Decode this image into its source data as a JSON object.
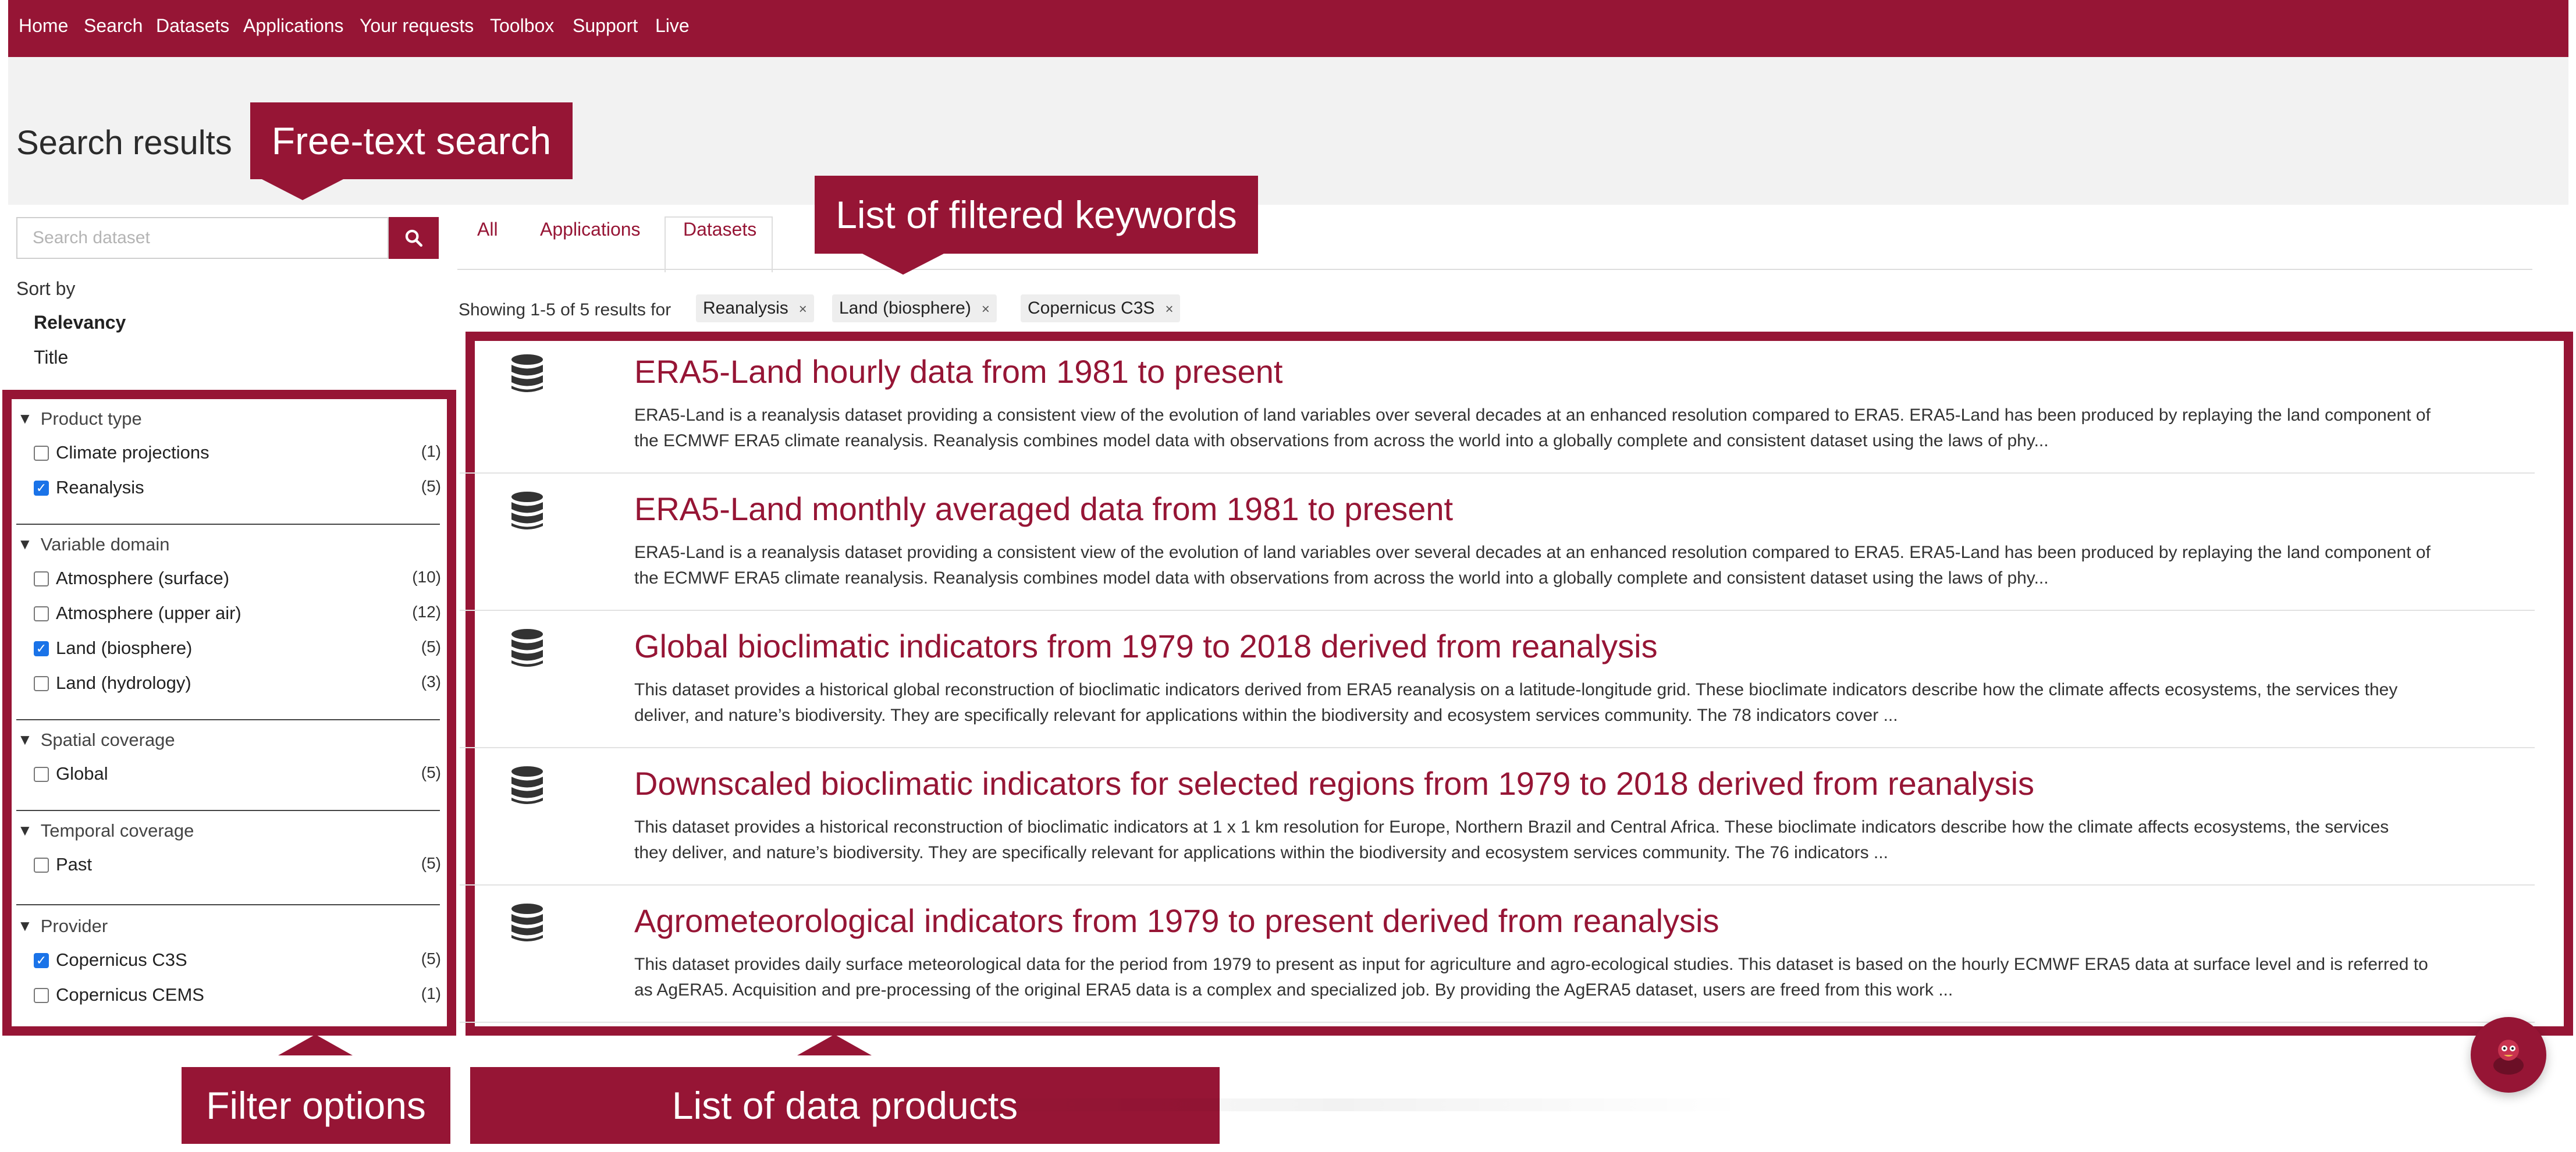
{
  "nav": {
    "items": [
      "Home",
      "Search",
      "Datasets",
      "Applications",
      "Your requests",
      "Toolbox",
      "Support",
      "Live"
    ]
  },
  "page": {
    "title": "Search results"
  },
  "search": {
    "placeholder": "Search dataset",
    "value": ""
  },
  "sort": {
    "label": "Sort by",
    "options": [
      "Relevancy",
      "Title"
    ],
    "selected": "Relevancy"
  },
  "filters": {
    "groups": [
      {
        "title": "Product type",
        "items": [
          {
            "label": "Climate projections",
            "count": "(1)",
            "checked": false
          },
          {
            "label": "Reanalysis",
            "count": "(5)",
            "checked": true
          }
        ]
      },
      {
        "title": "Variable domain",
        "items": [
          {
            "label": "Atmosphere (surface)",
            "count": "(10)",
            "checked": false
          },
          {
            "label": "Atmosphere (upper air)",
            "count": "(12)",
            "checked": false
          },
          {
            "label": "Land (biosphere)",
            "count": "(5)",
            "checked": true
          },
          {
            "label": "Land (hydrology)",
            "count": "(3)",
            "checked": false
          }
        ]
      },
      {
        "title": "Spatial coverage",
        "items": [
          {
            "label": "Global",
            "count": "(5)",
            "checked": false
          }
        ]
      },
      {
        "title": "Temporal coverage",
        "items": [
          {
            "label": "Past",
            "count": "(5)",
            "checked": false
          }
        ]
      },
      {
        "title": "Provider",
        "items": [
          {
            "label": "Copernicus C3S",
            "count": "(5)",
            "checked": true
          },
          {
            "label": "Copernicus CEMS",
            "count": "(1)",
            "checked": false
          }
        ]
      }
    ]
  },
  "tabs": {
    "items": [
      "All",
      "Applications",
      "Datasets"
    ],
    "active": "Datasets"
  },
  "results_info": {
    "showing": "Showing 1-5 of 5 results for",
    "keywords": [
      "Reanalysis",
      "Land (biosphere)",
      "Copernicus C3S"
    ],
    "remove_glyph": "×"
  },
  "results": [
    {
      "title": "ERA5-Land hourly data from 1981 to present",
      "line1": "ERA5-Land is a reanalysis dataset providing a consistent view of the evolution of land variables over several decades at an enhanced resolution compared to ERA5. ERA5-Land has been produced by replaying the land component of",
      "line2": "the ECMWF ERA5 climate reanalysis. Reanalysis combines model data with observations from across the world into a globally complete and consistent dataset using the laws of phy..."
    },
    {
      "title": "ERA5-Land monthly averaged data from 1981 to present",
      "line1": "ERA5-Land is a reanalysis dataset providing a consistent view of the evolution of land variables over several decades at an enhanced resolution compared to ERA5. ERA5-Land has been produced by replaying the land component of",
      "line2": "the ECMWF ERA5 climate reanalysis. Reanalysis combines model data with observations from across the world into a globally complete and consistent dataset using the laws of phy..."
    },
    {
      "title": "Global bioclimatic indicators from 1979 to 2018 derived from reanalysis",
      "line1": "This dataset provides a historical global reconstruction of bioclimatic indicators derived from ERA5 reanalysis on a latitude-longitude grid. These bioclimate indicators describe how the climate affects ecosystems, the services they",
      "line2": "deliver, and nature’s biodiversity. They are specifically relevant for applications within the biodiversity and ecosystem services community. The 78 indicators cover ..."
    },
    {
      "title": "Downscaled bioclimatic indicators for selected regions from 1979 to 2018 derived from reanalysis",
      "line1": "This dataset provides a historical reconstruction of bioclimatic indicators at 1 x 1 km resolution for Europe, Northern Brazil and Central Africa. These bioclimate indicators describe how the climate affects ecosystems, the services",
      "line2": "they deliver, and nature’s biodiversity. They are specifically relevant for applications within the biodiversity and ecosystem services community. The 76 indicators ..."
    },
    {
      "title": "Agrometeorological indicators from 1979 to present derived from reanalysis",
      "line1": "This dataset provides daily surface meteorological data for the period from 1979 to present as input for agriculture and agro-ecological studies. This dataset is based on the hourly ECMWF ERA5 data at surface level and is referred to",
      "line2": "as AgERA5. Acquisition and pre-processing of the original ERA5 data is a complex and specialized job. By providing the AgERA5 dataset, users are freed from this work ..."
    }
  ],
  "annotations": {
    "free_text_search": "Free-text search",
    "filtered_keywords": "List of filtered keywords",
    "filter_options": "Filter options",
    "data_products": "List of data products"
  },
  "icons": {
    "search": "search-icon",
    "database": "database-icon",
    "chevron": "chevron-down-icon",
    "chat": "chat-assistant-icon"
  },
  "colors": {
    "brand": "#961535",
    "link": "#961535",
    "checkbox": "#1a73e8",
    "band": "#f2f2f2"
  }
}
